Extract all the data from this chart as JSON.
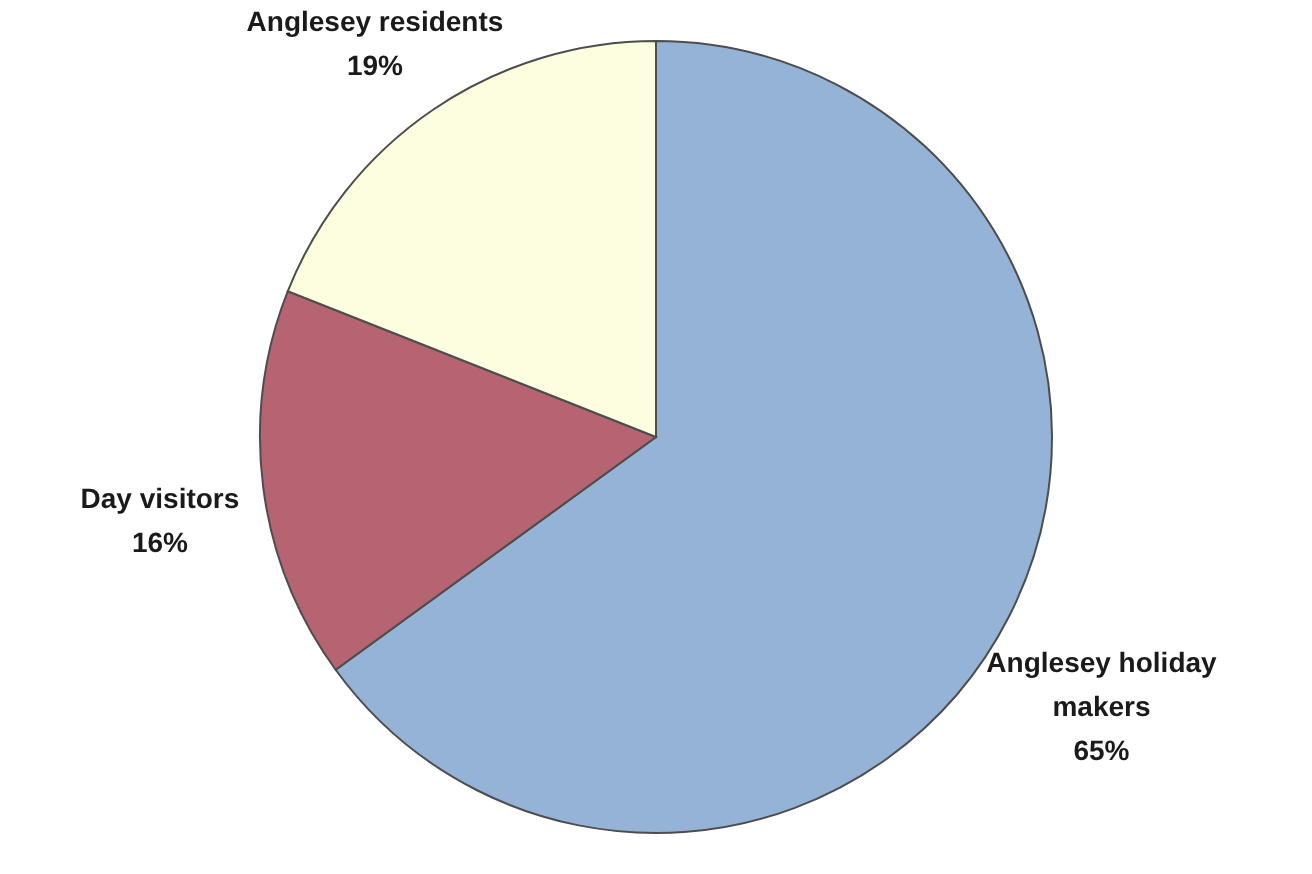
{
  "chart_data": {
    "type": "pie",
    "categories": [
      "Anglesey holiday makers",
      "Day visitors",
      "Anglesey residents"
    ],
    "values": [
      65,
      16,
      19
    ],
    "value_labels": [
      "65%",
      "16%",
      "19%"
    ],
    "colors": [
      "#95b3d7",
      "#b66472",
      "#fdfde0"
    ]
  }
}
